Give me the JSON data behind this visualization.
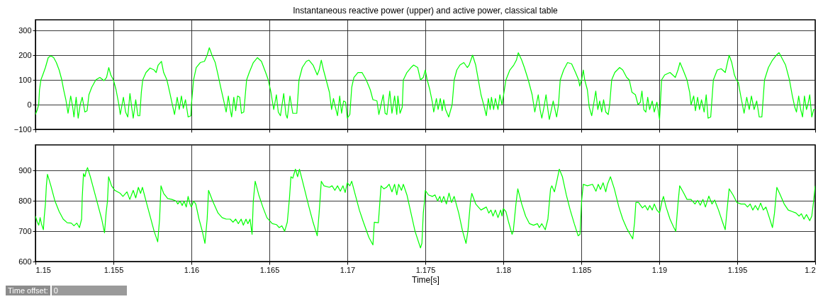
{
  "chart_data": [
    {
      "type": "line",
      "title": "Instantaneous reactive power (upper) and active power, classical table",
      "color": "#00ff00",
      "xlim": [
        1.15,
        1.2
      ],
      "xticks": [
        1.15,
        1.155,
        1.16,
        1.165,
        1.17,
        1.175,
        1.18,
        1.185,
        1.19,
        1.195,
        1.2
      ],
      "ylim": [
        -100,
        343
      ],
      "yticks": [
        -100,
        0,
        100,
        200,
        300
      ],
      "grid": true,
      "tick_labels": "y",
      "x": [
        1.15,
        1.15012,
        1.15021,
        1.15026,
        1.15035,
        1.15047,
        1.15064,
        1.15082,
        1.15099,
        1.15117,
        1.15134,
        1.15152,
        1.15169,
        1.15181,
        1.15195,
        1.15209,
        1.15226,
        1.15239,
        1.15247,
        1.15261,
        1.15274,
        1.15287,
        1.153,
        1.15317,
        1.15331,
        1.15343,
        1.15361,
        1.15387,
        1.15413,
        1.15439,
        1.15456,
        1.1547,
        1.15483,
        1.155,
        1.15517,
        1.15535,
        1.15544,
        1.15564,
        1.15578,
        1.15592,
        1.15606,
        1.15617,
        1.15627,
        1.15643,
        1.15657,
        1.15669,
        1.15679,
        1.15688,
        1.15709,
        1.15735,
        1.15761,
        1.15774,
        1.15787,
        1.15808,
        1.15822,
        1.15843,
        1.15861,
        1.15878,
        1.15892,
        1.15909,
        1.15922,
        1.15936,
        1.15948,
        1.15962,
        1.15979,
        1.15997,
        1.16,
        1.16014,
        1.16031,
        1.16057,
        1.16084,
        1.16101,
        1.16115,
        1.16132,
        1.16153,
        1.16171,
        1.16188,
        1.16206,
        1.16223,
        1.16237,
        1.16249,
        1.16258,
        1.16272,
        1.16284,
        1.16296,
        1.1631,
        1.16321,
        1.16336,
        1.16354,
        1.16371,
        1.16397,
        1.16423,
        1.16449,
        1.16476,
        1.16493,
        1.1651,
        1.16528,
        1.16545,
        1.16557,
        1.16571,
        1.16592,
        1.16606,
        1.16615,
        1.16632,
        1.1665,
        1.16676,
        1.1669,
        1.16711,
        1.16737,
        1.16754,
        1.1678,
        1.16807,
        1.16819,
        1.16833,
        1.16847,
        1.16864,
        1.16885,
        1.16899,
        1.16911,
        1.16923,
        1.16937,
        1.16951,
        1.16963,
        1.16976,
        1.16989,
        1.17,
        1.17016,
        1.17028,
        1.17042,
        1.17068,
        1.17094,
        1.17121,
        1.17147,
        1.17164,
        1.1719,
        1.17202,
        1.1723,
        1.17242,
        1.17254,
        1.17272,
        1.17286,
        1.17303,
        1.17317,
        1.17324,
        1.17338,
        1.17352,
        1.17359,
        1.17382,
        1.17408,
        1.17425,
        1.17451,
        1.17469,
        1.17487,
        1.175,
        1.17512,
        1.17529,
        1.17545,
        1.17554,
        1.17571,
        1.17582,
        1.17596,
        1.17608,
        1.17618,
        1.1763,
        1.1765,
        1.17672,
        1.17685,
        1.17702,
        1.17722,
        1.17747,
        1.17769,
        1.17781,
        1.17803,
        1.17823,
        1.1784,
        1.17857,
        1.17874,
        1.17891,
        1.17904,
        1.17916,
        1.17924,
        1.17938,
        1.17949,
        1.17966,
        1.17978,
        1.17992,
        1.18017,
        1.18042,
        1.18067,
        1.18084,
        1.18096,
        1.18118,
        1.18135,
        1.1816,
        1.18185,
        1.18202,
        1.18224,
        1.18236,
        1.18247,
        1.18261,
        1.18274,
        1.18286,
        1.18295,
        1.1832,
        1.18342,
        1.18354,
        1.18365,
        1.18387,
        1.18412,
        1.18438,
        1.18463,
        1.18483,
        1.1849,
        1.18502,
        1.18513,
        1.18522,
        1.18539,
        1.18551,
        1.18567,
        1.18593,
        1.18606,
        1.18618,
        1.18631,
        1.18643,
        1.18657,
        1.18673,
        1.18682,
        1.18695,
        1.18715,
        1.18746,
        1.18766,
        1.18791,
        1.18808,
        1.18825,
        1.18847,
        1.18864,
        1.18879,
        1.18889,
        1.18901,
        1.18914,
        1.18926,
        1.18938,
        1.18955,
        1.18968,
        1.18985,
        1.19002,
        1.19015,
        1.19035,
        1.19069,
        1.19103,
        1.1912,
        1.19133,
        1.19153,
        1.19178,
        1.19195,
        1.19204,
        1.19221,
        1.19232,
        1.19246,
        1.19258,
        1.19271,
        1.19288,
        1.19301,
        1.19313,
        1.1933,
        1.19347,
        1.19372,
        1.19397,
        1.19423,
        1.19448,
        1.19465,
        1.19482,
        1.19495,
        1.19507,
        1.19524,
        1.19544,
        1.19561,
        1.19577,
        1.19591,
        1.19608,
        1.19625,
        1.19641,
        1.19658,
        1.19675,
        1.197,
        1.19726,
        1.19751,
        1.19768,
        1.19785,
        1.1981,
        1.19835,
        1.19852,
        1.19869,
        1.1988,
        1.19894,
        1.19907,
        1.19919,
        1.19931,
        1.19944,
        1.19953,
        1.19965,
        1.19978,
        1.1999,
        1.2
      ],
      "values": [
        -40,
        -20,
        0,
        60,
        100,
        120,
        150,
        190,
        197,
        190,
        170,
        140,
        100,
        60,
        20,
        -35,
        35,
        -10,
        -50,
        30,
        -55,
        0,
        30,
        -30,
        -25,
        40,
        70,
        100,
        110,
        97,
        110,
        150,
        120,
        100,
        60,
        0,
        -40,
        30,
        -30,
        -50,
        45,
        -10,
        -55,
        20,
        -45,
        -45,
        50,
        100,
        130,
        148,
        140,
        130,
        160,
        175,
        130,
        100,
        50,
        0,
        -40,
        30,
        -20,
        35,
        -15,
        20,
        -50,
        -45,
        0,
        100,
        150,
        170,
        175,
        200,
        230,
        200,
        170,
        120,
        70,
        20,
        -30,
        35,
        -20,
        -50,
        30,
        -25,
        35,
        30,
        -35,
        -30,
        100,
        130,
        170,
        190,
        175,
        130,
        100,
        50,
        -20,
        40,
        -30,
        -45,
        45,
        -40,
        -55,
        35,
        -35,
        -35,
        100,
        150,
        175,
        180,
        160,
        120,
        140,
        180,
        140,
        100,
        50,
        -20,
        25,
        -10,
        -45,
        35,
        -35,
        15,
        10,
        -55,
        -40,
        70,
        110,
        130,
        130,
        100,
        60,
        20,
        15,
        -40,
        40,
        -35,
        -40,
        55,
        -35,
        35,
        -40,
        35,
        -35,
        -10,
        100,
        130,
        150,
        160,
        150,
        100,
        110,
        140,
        100,
        60,
        10,
        -30,
        25,
        -20,
        25,
        -25,
        20,
        -20,
        -50,
        0,
        100,
        140,
        160,
        170,
        150,
        160,
        200,
        160,
        100,
        40,
        0,
        -45,
        25,
        -20,
        30,
        -20,
        25,
        -20,
        40,
        0,
        100,
        140,
        160,
        180,
        210,
        180,
        150,
        100,
        40,
        -30,
        40,
        -20,
        -55,
        -10,
        40,
        -20,
        -60,
        15,
        -50,
        0,
        100,
        140,
        170,
        165,
        130,
        100,
        75,
        100,
        140,
        100,
        60,
        -10,
        -45,
        55,
        -20,
        15,
        -30,
        20,
        -30,
        -40,
        0,
        100,
        130,
        150,
        140,
        110,
        100,
        50,
        40,
        0,
        10,
        55,
        -20,
        -30,
        30,
        -20,
        15,
        -30,
        10,
        -60,
        100,
        120,
        130,
        110,
        140,
        170,
        140,
        100,
        50,
        0,
        35,
        -25,
        30,
        -20,
        20,
        -30,
        40,
        -55,
        -50,
        100,
        140,
        145,
        130,
        200,
        170,
        120,
        100,
        90,
        30,
        -35,
        30,
        -20,
        35,
        -20,
        15,
        -50,
        -50,
        100,
        150,
        180,
        200,
        210,
        190,
        160,
        100,
        40,
        -10,
        -30,
        35,
        -20,
        -50,
        35,
        -20,
        0,
        40,
        -50,
        -20,
        -20
      ]
    },
    {
      "type": "line",
      "xlabel": "Time[s]",
      "color": "#00ff00",
      "xlim": [
        1.15,
        1.2
      ],
      "xticks": [
        1.15,
        1.155,
        1.16,
        1.165,
        1.17,
        1.175,
        1.18,
        1.185,
        1.19,
        1.195,
        1.2
      ],
      "ylim": [
        600,
        985
      ],
      "yticks": [
        600,
        700,
        800,
        900
      ],
      "grid": true,
      "annotations": [
        "Time offset:",
        "0"
      ],
      "x": [
        1.15,
        1.15012,
        1.15021,
        1.1503,
        1.15038,
        1.15051,
        1.15056,
        1.15064,
        1.1507,
        1.15077,
        1.15099,
        1.15125,
        1.15152,
        1.15178,
        1.15204,
        1.1523,
        1.15247,
        1.15265,
        1.15282,
        1.15296,
        1.153,
        1.15308,
        1.15317,
        1.15326,
        1.15334,
        1.15352,
        1.15378,
        1.15404,
        1.15425,
        1.15443,
        1.15453,
        1.15462,
        1.15469,
        1.15488,
        1.15509,
        1.15544,
        1.15561,
        1.15587,
        1.15605,
        1.15627,
        1.15643,
        1.1566,
        1.15674,
        1.15686,
        1.15709,
        1.15735,
        1.15761,
        1.15784,
        1.15796,
        1.15805,
        1.15822,
        1.15848,
        1.15875,
        1.15901,
        1.15913,
        1.15927,
        1.15941,
        1.15953,
        1.15967,
        1.15979,
        1.15991,
        1.16,
        1.16014,
        1.16028,
        1.16049,
        1.1607,
        1.16087,
        1.16101,
        1.1611,
        1.16136,
        1.16171,
        1.16197,
        1.16223,
        1.16249,
        1.16267,
        1.16284,
        1.16301,
        1.16319,
        1.16333,
        1.1635,
        1.16362,
        1.16376,
        1.16389,
        1.16397,
        1.16409,
        1.16432,
        1.16458,
        1.16484,
        1.16519,
        1.16545,
        1.16563,
        1.1658,
        1.16598,
        1.16615,
        1.16629,
        1.16638,
        1.1665,
        1.16667,
        1.16681,
        1.16693,
        1.1672,
        1.16754,
        1.1678,
        1.16807,
        1.16819,
        1.16833,
        1.1685,
        1.16885,
        1.16902,
        1.1692,
        1.16937,
        1.16955,
        1.16972,
        1.16986,
        1.17,
        1.17016,
        1.17028,
        1.17051,
        1.17077,
        1.17103,
        1.17138,
        1.17164,
        1.17173,
        1.17199,
        1.17216,
        1.17234,
        1.17251,
        1.17268,
        1.17286,
        1.17303,
        1.17317,
        1.17329,
        1.17347,
        1.17359,
        1.17382,
        1.17408,
        1.17434,
        1.17469,
        1.17478,
        1.17487,
        1.17495,
        1.175,
        1.1752,
        1.17545,
        1.17562,
        1.17579,
        1.17593,
        1.17604,
        1.17618,
        1.17635,
        1.17652,
        1.17668,
        1.17685,
        1.17714,
        1.17739,
        1.17761,
        1.17773,
        1.1779,
        1.17798,
        1.17823,
        1.17857,
        1.17891,
        1.17907,
        1.17921,
        1.17934,
        1.17949,
        1.17966,
        1.17983,
        1.17992,
        1.18,
        1.18017,
        1.18034,
        1.18056,
        1.18064,
        1.18081,
        1.18093,
        1.18118,
        1.18143,
        1.18168,
        1.18194,
        1.18219,
        1.18231,
        1.18247,
        1.18269,
        1.18286,
        1.18303,
        1.18311,
        1.18328,
        1.18345,
        1.18359,
        1.18379,
        1.18404,
        1.18429,
        1.18455,
        1.1848,
        1.18492,
        1.18502,
        1.18513,
        1.18539,
        1.18572,
        1.18594,
        1.18609,
        1.18623,
        1.1864,
        1.18657,
        1.18668,
        1.18687,
        1.18712,
        1.18741,
        1.18766,
        1.18791,
        1.18813,
        1.1883,
        1.18842,
        1.1885,
        1.18867,
        1.18892,
        1.18909,
        1.18926,
        1.18939,
        1.18955,
        1.18968,
        1.18985,
        1.19002,
        1.19018,
        1.19027,
        1.19044,
        1.19069,
        1.19091,
        1.19106,
        1.1912,
        1.19131,
        1.19153,
        1.19178,
        1.19204,
        1.19229,
        1.19246,
        1.19263,
        1.1928,
        1.19296,
        1.19318,
        1.19338,
        1.19355,
        1.1938,
        1.19406,
        1.19423,
        1.19431,
        1.19448,
        1.19473,
        1.19498,
        1.19524,
        1.19549,
        1.19566,
        1.19583,
        1.196,
        1.19616,
        1.19633,
        1.1965,
        1.19667,
        1.19684,
        1.19709,
        1.19726,
        1.19739,
        1.19754,
        1.19776,
        1.19801,
        1.19827,
        1.19852,
        1.19877,
        1.19897,
        1.19911,
        1.19928,
        1.19944,
        1.19965,
        1.19978,
        1.1999,
        1.2
      ],
      "values": [
        750,
        730,
        720,
        745,
        725,
        705,
        745,
        790,
        850,
        888,
        850,
        800,
        765,
        740,
        728,
        727,
        718,
        727,
        712,
        740,
        810,
        890,
        880,
        900,
        910,
        880,
        830,
        780,
        740,
        695,
        760,
        800,
        880,
        850,
        835,
        825,
        815,
        830,
        805,
        835,
        810,
        845,
        825,
        845,
        800,
        750,
        700,
        665,
        740,
        850,
        825,
        808,
        805,
        800,
        790,
        800,
        785,
        800,
        780,
        815,
        790,
        780,
        800,
        790,
        740,
        700,
        660,
        740,
        835,
        800,
        760,
        745,
        740,
        740,
        730,
        740,
        725,
        740,
        720,
        740,
        725,
        740,
        690,
        800,
        865,
        820,
        780,
        745,
        725,
        722,
        712,
        718,
        700,
        730,
        810,
        880,
        875,
        905,
        880,
        905,
        850,
        780,
        730,
        685,
        760,
        865,
        850,
        845,
        850,
        835,
        850,
        832,
        850,
        828,
        860,
        850,
        865,
        820,
        770,
        730,
        680,
        655,
        730,
        728,
        850,
        840,
        845,
        855,
        830,
        855,
        820,
        855,
        835,
        855,
        820,
        760,
        700,
        645,
        660,
        760,
        800,
        835,
        820,
        815,
        820,
        800,
        815,
        795,
        815,
        790,
        826,
        795,
        815,
        760,
        700,
        660,
        700,
        800,
        825,
        790,
        770,
        780,
        760,
        770,
        750,
        770,
        745,
        770,
        750,
        775,
        765,
        730,
        690,
        700,
        790,
        840,
        790,
        750,
        725,
        720,
        725,
        712,
        725,
        705,
        740,
        840,
        850,
        830,
        870,
        905,
        880,
        820,
        770,
        725,
        685,
        690,
        800,
        855,
        850,
        855,
        832,
        855,
        838,
        860,
        830,
        855,
        880,
        840,
        780,
        740,
        710,
        690,
        675,
        730,
        795,
        795,
        777,
        785,
        770,
        785,
        770,
        790,
        770,
        760,
        800,
        815,
        780,
        740,
        715,
        700,
        790,
        850,
        830,
        805,
        805,
        790,
        802,
        786,
        805,
        780,
        816,
        790,
        803,
        770,
        730,
        705,
        750,
        840,
        820,
        795,
        790,
        790,
        780,
        790,
        770,
        785,
        770,
        793,
        770,
        780,
        740,
        712,
        760,
        845,
        820,
        790,
        770,
        765,
        760,
        750,
        758,
        740,
        755,
        735,
        750,
        800,
        850
      ]
    }
  ]
}
